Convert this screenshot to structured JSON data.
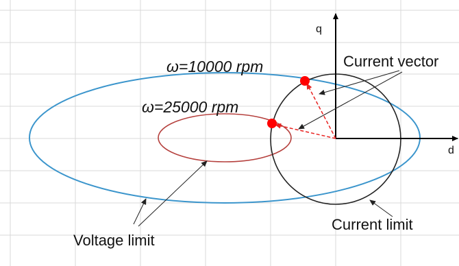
{
  "labels": {
    "q_axis": "q",
    "d_axis": "d",
    "speed_low": "ω=10000 rpm",
    "speed_high": "ω=25000 rpm",
    "current_vector": "Current vector",
    "voltage_limit": "Voltage limit",
    "current_limit": "Current limit"
  },
  "colors": {
    "grid": "#d9d9d9",
    "axis": "#000000",
    "ellipse_10000": "#3b95cc",
    "ellipse_25000": "#b5403d",
    "circle": "#222222",
    "vector": "#e8211f",
    "point": "#ff0000"
  }
}
